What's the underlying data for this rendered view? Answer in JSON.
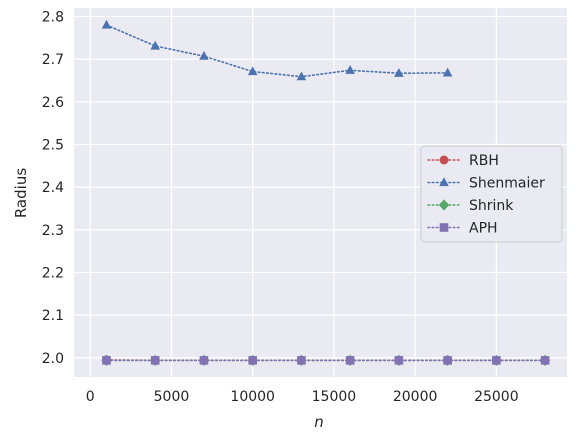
{
  "chart_data": {
    "type": "line",
    "xlabel": "n",
    "ylabel": "Radius",
    "xlim": [
      -1000,
      29350
    ],
    "ylim": [
      1.955,
      2.82
    ],
    "xticks": [
      0,
      5000,
      10000,
      15000,
      20000,
      25000
    ],
    "xtick_labels": [
      "0",
      "5000",
      "10000",
      "15000",
      "20000",
      "25000"
    ],
    "yticks": [
      2.0,
      2.1,
      2.2,
      2.3,
      2.4,
      2.5,
      2.6,
      2.7,
      2.8
    ],
    "ytick_labels": [
      "2.0",
      "2.1",
      "2.2",
      "2.3",
      "2.4",
      "2.5",
      "2.6",
      "2.7",
      "2.8"
    ],
    "grid": true,
    "legend_position": "center-right",
    "series": [
      {
        "name": "RBH",
        "color": "#c44e52",
        "marker": "circle",
        "x": [
          1000,
          4000,
          7000,
          10000,
          13000,
          16000,
          19000,
          22000,
          25000,
          28000
        ],
        "y": [
          1.995,
          1.994,
          1.994,
          1.994,
          1.994,
          1.994,
          1.994,
          1.994,
          1.994,
          1.994
        ]
      },
      {
        "name": "Shenmaier",
        "color": "#4c72b0",
        "marker": "triangle",
        "x": [
          1000,
          4000,
          7000,
          10000,
          13000,
          16000,
          19000,
          22000
        ],
        "y": [
          2.78,
          2.731,
          2.707,
          2.671,
          2.659,
          2.674,
          2.667,
          2.668
        ]
      },
      {
        "name": "Shrink",
        "color": "#55a868",
        "marker": "diamond",
        "x": [
          1000,
          4000,
          7000,
          10000,
          13000,
          16000,
          19000,
          22000,
          25000,
          28000
        ],
        "y": [
          1.994,
          1.994,
          1.994,
          1.994,
          1.994,
          1.994,
          1.994,
          1.994,
          1.994,
          1.994
        ]
      },
      {
        "name": "APH",
        "color": "#8172b3",
        "marker": "square",
        "x": [
          1000,
          4000,
          7000,
          10000,
          13000,
          16000,
          19000,
          22000,
          25000,
          28000
        ],
        "y": [
          1.994,
          1.994,
          1.994,
          1.994,
          1.994,
          1.994,
          1.994,
          1.994,
          1.994,
          1.994
        ]
      }
    ]
  }
}
